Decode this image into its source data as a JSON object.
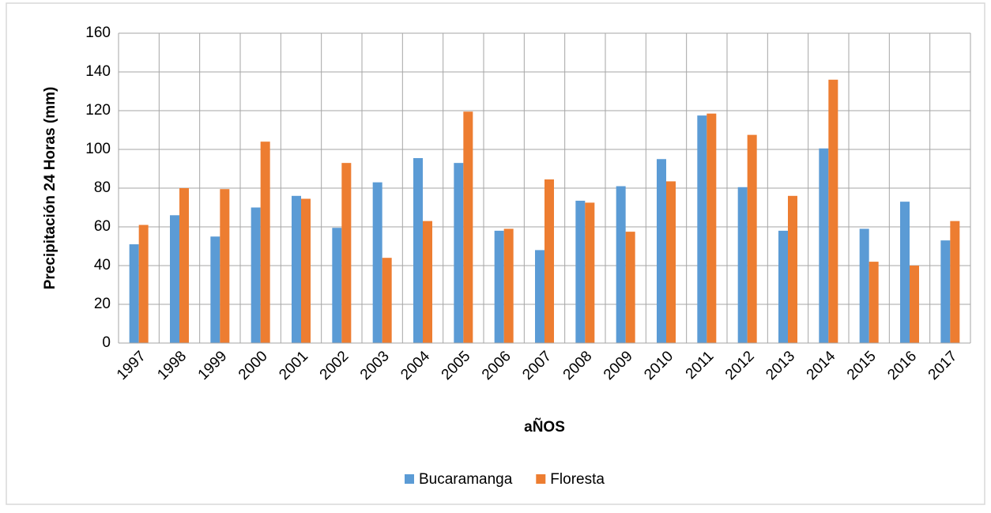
{
  "chart_data": {
    "type": "bar",
    "y_label": "Precipitación 24 Horas (mm)",
    "x_label": "aÑOS",
    "categories": [
      "1997",
      "1998",
      "1999",
      "2000",
      "2001",
      "2002",
      "2003",
      "2004",
      "2005",
      "2006",
      "2007",
      "2008",
      "2009",
      "2010",
      "2011",
      "2012",
      "2013",
      "2014",
      "2015",
      "2016",
      "2017"
    ],
    "series": [
      {
        "name": "Bucaramanga",
        "color": "#5b9bd5",
        "values": [
          51,
          66,
          55,
          70,
          76,
          59.5,
          83,
          95.5,
          93,
          58,
          48,
          73.5,
          81,
          95,
          117.5,
          80.5,
          58,
          100.5,
          59,
          73,
          53
        ]
      },
      {
        "name": "Floresta",
        "color": "#ed7d31",
        "values": [
          61,
          80,
          79.5,
          104,
          74.5,
          93,
          44,
          63,
          119.5,
          59,
          84.5,
          72.5,
          57.5,
          83.5,
          118.5,
          107.5,
          76,
          136,
          42,
          40,
          63
        ]
      }
    ],
    "ylim": [
      0,
      160
    ],
    "yticks": [
      0,
      20,
      40,
      60,
      80,
      100,
      120,
      140,
      160
    ],
    "grid": true,
    "legend": "bottom"
  }
}
